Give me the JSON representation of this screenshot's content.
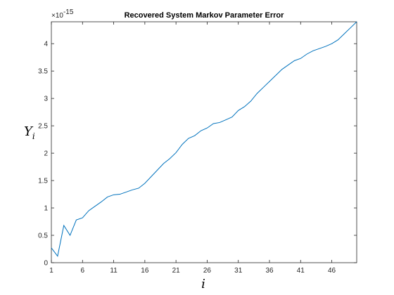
{
  "chart_data": {
    "type": "line",
    "title": "Recovered System Markov Parameter Error",
    "xlabel": "i",
    "ylabel": "Y",
    "ylabel_subscript": "i",
    "y_exponent_label": "×10",
    "y_exponent_power": "-15",
    "xlim": [
      1,
      50
    ],
    "ylim": [
      0,
      4.4
    ],
    "x_ticks": [
      "1",
      "6",
      "11",
      "16",
      "21",
      "26",
      "31",
      "36",
      "41",
      "46"
    ],
    "y_ticks": [
      "0",
      "0.5",
      "1",
      "1.5",
      "2",
      "2.5",
      "3",
      "3.5",
      "4"
    ],
    "grid": false,
    "color": "#0072bd",
    "x": [
      1,
      2,
      3,
      4,
      5,
      6,
      7,
      8,
      9,
      10,
      11,
      12,
      13,
      14,
      15,
      16,
      17,
      18,
      19,
      20,
      21,
      22,
      23,
      24,
      25,
      26,
      27,
      28,
      29,
      30,
      31,
      32,
      33,
      34,
      35,
      36,
      37,
      38,
      39,
      40,
      41,
      42,
      43,
      44,
      45,
      46,
      47,
      48,
      49,
      50
    ],
    "y": [
      0.27,
      0.12,
      0.68,
      0.5,
      0.78,
      0.82,
      0.95,
      1.03,
      1.11,
      1.2,
      1.24,
      1.25,
      1.29,
      1.33,
      1.36,
      1.45,
      1.57,
      1.69,
      1.81,
      1.9,
      2.01,
      2.16,
      2.27,
      2.32,
      2.41,
      2.46,
      2.54,
      2.56,
      2.61,
      2.66,
      2.78,
      2.85,
      2.95,
      3.09,
      3.2,
      3.31,
      3.42,
      3.53,
      3.61,
      3.69,
      3.73,
      3.81,
      3.87,
      3.91,
      3.95,
      4.0,
      4.07,
      4.18,
      4.29,
      4.4
    ]
  }
}
